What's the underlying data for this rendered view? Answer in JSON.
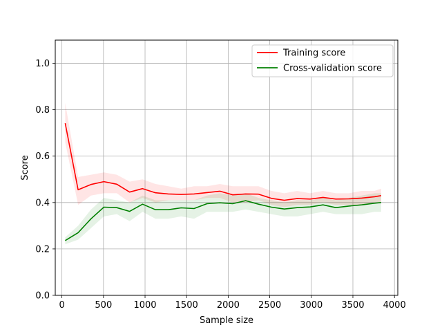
{
  "chart_data": {
    "type": "line",
    "title": "",
    "xlabel": "Sample size",
    "ylabel": "Score",
    "xlim": [
      -80,
      4040
    ],
    "ylim": [
      0.0,
      1.1
    ],
    "xticks": [
      0,
      500,
      1000,
      1500,
      2000,
      2500,
      3000,
      3500,
      4000
    ],
    "yticks": [
      0.0,
      0.2,
      0.4,
      0.6,
      0.8,
      1.0
    ],
    "xtick_labels": [
      "0",
      "500",
      "1000",
      "1500",
      "2000",
      "2500",
      "3000",
      "3500",
      "4000"
    ],
    "ytick_labels": [
      "0.0",
      "0.2",
      "0.4",
      "0.6",
      "0.8",
      "1.0"
    ],
    "grid": true,
    "legend_position": "top-right",
    "x": [
      40,
      195,
      350,
      505,
      660,
      815,
      970,
      1125,
      1280,
      1435,
      1590,
      1745,
      1900,
      2055,
      2210,
      2365,
      2520,
      2675,
      2830,
      2985,
      3140,
      3295,
      3450,
      3605,
      3760,
      3840
    ],
    "series": [
      {
        "name": "Training score",
        "color": "#ff0000",
        "values": [
          0.742,
          0.455,
          0.478,
          0.49,
          0.479,
          0.445,
          0.46,
          0.442,
          0.437,
          0.435,
          0.437,
          0.443,
          0.449,
          0.433,
          0.437,
          0.436,
          0.418,
          0.41,
          0.417,
          0.415,
          0.422,
          0.415,
          0.416,
          0.419,
          0.425,
          0.43
        ],
        "band_low": [
          0.66,
          0.39,
          0.43,
          0.44,
          0.44,
          0.4,
          0.42,
          0.4,
          0.41,
          0.41,
          0.41,
          0.42,
          0.42,
          0.4,
          0.4,
          0.41,
          0.39,
          0.38,
          0.39,
          0.39,
          0.4,
          0.39,
          0.39,
          0.39,
          0.4,
          0.4
        ],
        "band_high": [
          0.83,
          0.51,
          0.52,
          0.53,
          0.52,
          0.49,
          0.5,
          0.48,
          0.47,
          0.46,
          0.47,
          0.47,
          0.48,
          0.47,
          0.47,
          0.47,
          0.45,
          0.44,
          0.45,
          0.44,
          0.45,
          0.44,
          0.44,
          0.45,
          0.45,
          0.46
        ]
      },
      {
        "name": "Cross-validation score",
        "color": "#008000",
        "values": [
          0.236,
          0.27,
          0.33,
          0.38,
          0.378,
          0.362,
          0.393,
          0.369,
          0.369,
          0.377,
          0.374,
          0.395,
          0.399,
          0.395,
          0.408,
          0.393,
          0.38,
          0.372,
          0.378,
          0.381,
          0.39,
          0.378,
          0.385,
          0.39,
          0.397,
          0.4
        ],
        "band_low": [
          0.22,
          0.24,
          0.29,
          0.34,
          0.35,
          0.32,
          0.36,
          0.33,
          0.33,
          0.34,
          0.33,
          0.36,
          0.36,
          0.36,
          0.37,
          0.36,
          0.35,
          0.34,
          0.34,
          0.35,
          0.36,
          0.35,
          0.35,
          0.35,
          0.36,
          0.36
        ],
        "band_high": [
          0.25,
          0.3,
          0.37,
          0.42,
          0.41,
          0.4,
          0.43,
          0.41,
          0.41,
          0.41,
          0.41,
          0.43,
          0.44,
          0.43,
          0.44,
          0.42,
          0.41,
          0.4,
          0.41,
          0.41,
          0.42,
          0.41,
          0.42,
          0.43,
          0.44,
          0.44
        ]
      }
    ]
  }
}
